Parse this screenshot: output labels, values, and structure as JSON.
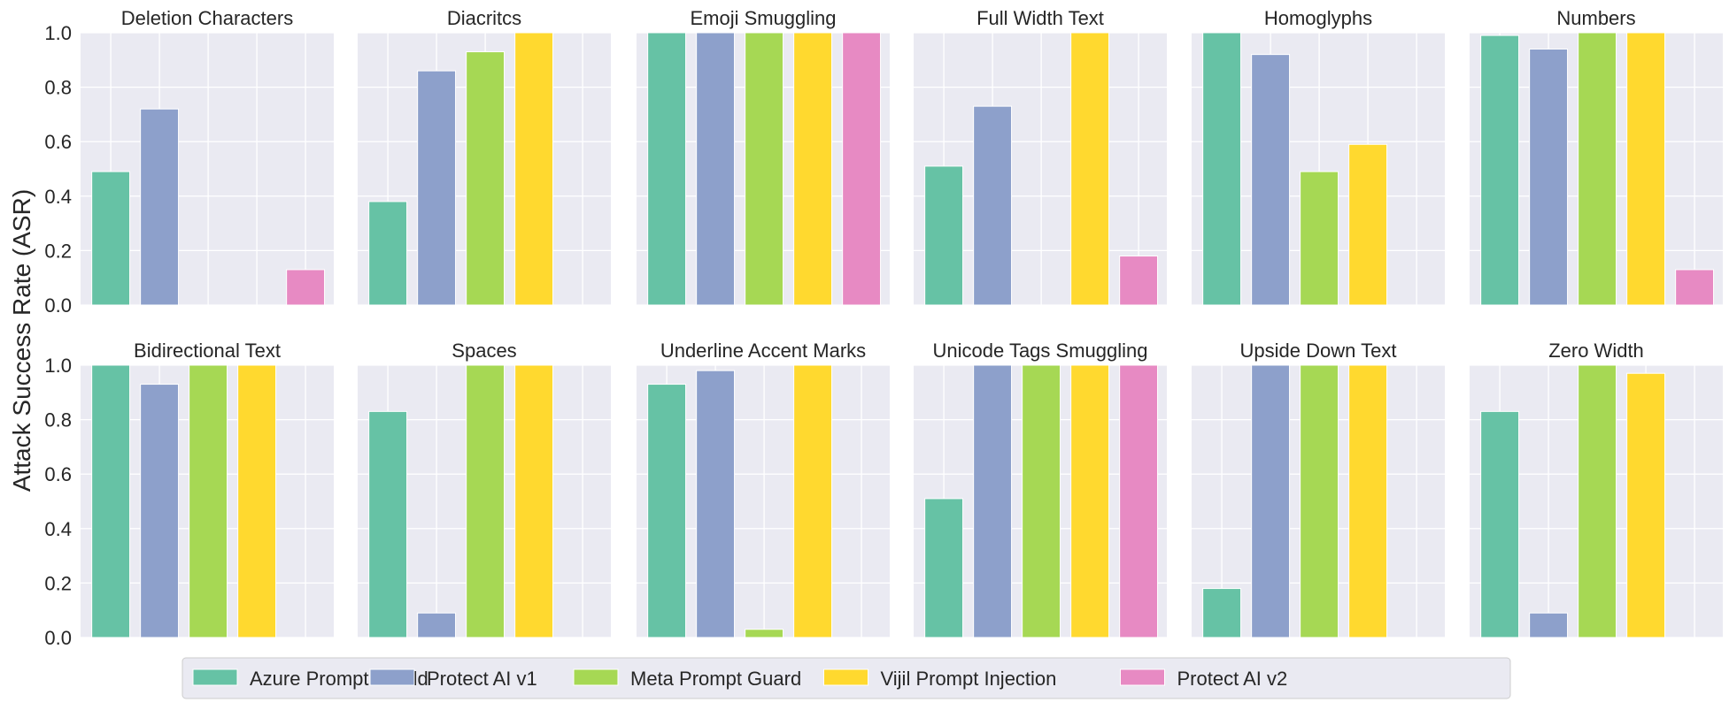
{
  "chart_data": {
    "type": "bar",
    "ylabel": "Attack Success Rate (ASR)",
    "ylim": [
      0,
      1.0
    ],
    "yticks": [
      "0.0",
      "0.2",
      "0.4",
      "0.6",
      "0.8",
      "1.0"
    ],
    "grid": true,
    "legend_position": "bottom-center",
    "series": [
      {
        "name": "Azure Prompt Shield",
        "color": "#66c2a5"
      },
      {
        "name": "Protect AI v1",
        "color": "#8da0cb"
      },
      {
        "name": "Meta Prompt Guard",
        "color": "#a6d854"
      },
      {
        "name": "Vijil Prompt Injection",
        "color": "#ffd92f"
      },
      {
        "name": "Protect AI v2",
        "color": "#e78ac3"
      }
    ],
    "panels": [
      {
        "title": "Deletion Characters",
        "values": [
          0.49,
          0.72,
          0.0,
          0.0,
          0.13
        ]
      },
      {
        "title": "Diacritcs",
        "values": [
          0.38,
          0.86,
          0.93,
          1.0,
          0.0
        ]
      },
      {
        "title": "Emoji Smuggling",
        "values": [
          1.0,
          1.0,
          1.0,
          1.0,
          1.0
        ]
      },
      {
        "title": "Full Width Text",
        "values": [
          0.51,
          0.73,
          0.0,
          1.0,
          0.18
        ]
      },
      {
        "title": "Homoglyphs",
        "values": [
          1.0,
          0.92,
          0.49,
          0.59,
          0.0
        ]
      },
      {
        "title": "Numbers",
        "values": [
          0.99,
          0.94,
          1.0,
          1.0,
          0.13
        ]
      },
      {
        "title": "Bidirectional Text",
        "values": [
          1.0,
          0.93,
          1.0,
          1.0,
          0.0
        ]
      },
      {
        "title": "Spaces",
        "values": [
          0.83,
          0.09,
          1.0,
          1.0,
          0.0
        ]
      },
      {
        "title": "Underline Accent Marks",
        "values": [
          0.93,
          0.98,
          0.03,
          1.0,
          0.0
        ]
      },
      {
        "title": "Unicode Tags Smuggling",
        "values": [
          0.51,
          1.0,
          1.0,
          1.0,
          1.0
        ]
      },
      {
        "title": "Upside Down Text",
        "values": [
          0.18,
          1.0,
          1.0,
          1.0,
          0.0
        ]
      },
      {
        "title": "Zero Width",
        "values": [
          0.83,
          0.09,
          1.0,
          0.97,
          0.0
        ]
      }
    ]
  }
}
